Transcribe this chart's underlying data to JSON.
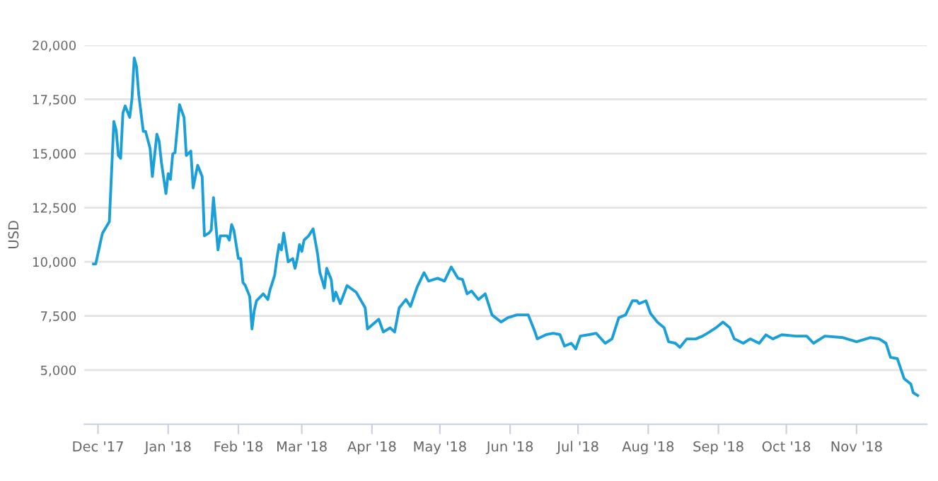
{
  "chart_data": {
    "type": "line",
    "ylabel": "USD",
    "grid": "y",
    "line_style": "solid",
    "marker": "none",
    "xlim": [
      "2017-11-25",
      "2018-12-02"
    ],
    "ylim": [
      2500,
      20000
    ],
    "yticks": [
      {
        "value": 5000,
        "label": "5,000"
      },
      {
        "value": 7500,
        "label": "7,500"
      },
      {
        "value": 10000,
        "label": "10,000"
      },
      {
        "value": 12500,
        "label": "12,500"
      },
      {
        "value": 15000,
        "label": "15,000"
      },
      {
        "value": 17500,
        "label": "17,500"
      },
      {
        "value": 20000,
        "label": "20,000"
      }
    ],
    "xticks": [
      {
        "value": "2017-12-01",
        "label": "Dec '17"
      },
      {
        "value": "2018-01-01",
        "label": "Jan '18"
      },
      {
        "value": "2018-02-01",
        "label": "Feb '18"
      },
      {
        "value": "2018-03-01",
        "label": "Mar '18"
      },
      {
        "value": "2018-04-01",
        "label": "Apr '18"
      },
      {
        "value": "2018-05-01",
        "label": "May '18"
      },
      {
        "value": "2018-06-01",
        "label": "Jun '18"
      },
      {
        "value": "2018-07-01",
        "label": "Jul '18"
      },
      {
        "value": "2018-08-01",
        "label": "Aug '18"
      },
      {
        "value": "2018-09-01",
        "label": "Sep '18"
      },
      {
        "value": "2018-10-01",
        "label": "Oct '18"
      },
      {
        "value": "2018-11-01",
        "label": "Nov '18"
      }
    ],
    "series": [
      {
        "color": "#1a9fd8",
        "x": [
          "2017-11-29",
          "2017-11-30",
          "2017-12-02",
          "2017-12-03",
          "2017-12-06",
          "2017-12-08",
          "2017-12-09",
          "2017-12-10",
          "2017-12-11",
          "2017-12-12",
          "2017-12-13",
          "2017-12-15",
          "2017-12-16",
          "2017-12-17",
          "2017-12-18",
          "2017-12-19",
          "2017-12-21",
          "2017-12-22",
          "2017-12-24",
          "2017-12-25",
          "2017-12-27",
          "2017-12-28",
          "2017-12-29",
          "2017-12-31",
          "2018-01-01",
          "2018-01-02",
          "2018-01-03",
          "2018-01-04",
          "2018-01-06",
          "2018-01-08",
          "2018-01-09",
          "2018-01-11",
          "2018-01-12",
          "2018-01-14",
          "2018-01-16",
          "2018-01-17",
          "2018-01-19",
          "2018-01-20",
          "2018-01-21",
          "2018-01-23",
          "2018-01-24",
          "2018-01-27",
          "2018-01-28",
          "2018-01-29",
          "2018-01-30",
          "2018-02-01",
          "2018-02-02",
          "2018-02-03",
          "2018-02-04",
          "2018-02-06",
          "2018-02-07",
          "2018-02-08",
          "2018-02-09",
          "2018-02-12",
          "2018-02-14",
          "2018-02-15",
          "2018-02-17",
          "2018-02-18",
          "2018-02-19",
          "2018-02-20",
          "2018-02-21",
          "2018-02-23",
          "2018-02-25",
          "2018-02-26",
          "2018-02-27",
          "2018-02-28",
          "2018-03-01",
          "2018-03-02",
          "2018-03-04",
          "2018-03-06",
          "2018-03-08",
          "2018-03-09",
          "2018-03-11",
          "2018-03-12",
          "2018-03-14",
          "2018-03-15",
          "2018-03-16",
          "2018-03-18",
          "2018-03-21",
          "2018-03-25",
          "2018-03-29",
          "2018-03-30",
          "2018-04-04",
          "2018-04-06",
          "2018-04-09",
          "2018-04-11",
          "2018-04-13",
          "2018-04-16",
          "2018-04-18",
          "2018-04-21",
          "2018-04-24",
          "2018-04-26",
          "2018-04-30",
          "2018-05-03",
          "2018-05-06",
          "2018-05-09",
          "2018-05-11",
          "2018-05-13",
          "2018-05-15",
          "2018-05-18",
          "2018-05-21",
          "2018-05-24",
          "2018-05-28",
          "2018-05-31",
          "2018-06-04",
          "2018-06-09",
          "2018-06-12",
          "2018-06-13",
          "2018-06-17",
          "2018-06-20",
          "2018-06-23",
          "2018-06-25",
          "2018-06-28",
          "2018-06-30",
          "2018-07-02",
          "2018-07-06",
          "2018-07-09",
          "2018-07-13",
          "2018-07-16",
          "2018-07-19",
          "2018-07-22",
          "2018-07-25",
          "2018-07-27",
          "2018-07-28",
          "2018-07-31",
          "2018-08-02",
          "2018-08-05",
          "2018-08-08",
          "2018-08-10",
          "2018-08-13",
          "2018-08-15",
          "2018-08-18",
          "2018-08-22",
          "2018-08-25",
          "2018-08-28",
          "2018-08-31",
          "2018-09-03",
          "2018-09-06",
          "2018-09-08",
          "2018-09-12",
          "2018-09-15",
          "2018-09-19",
          "2018-09-22",
          "2018-09-25",
          "2018-09-29",
          "2018-10-05",
          "2018-10-10",
          "2018-10-13",
          "2018-10-18",
          "2018-10-26",
          "2018-11-01",
          "2018-11-07",
          "2018-11-11",
          "2018-11-14",
          "2018-11-16",
          "2018-11-19",
          "2018-11-22",
          "2018-11-25",
          "2018-11-26",
          "2018-11-28"
        ],
        "values": [
          9900,
          9900,
          10870,
          11330,
          11850,
          16480,
          16090,
          14910,
          14780,
          16870,
          17200,
          16670,
          17520,
          19410,
          19020,
          17720,
          16020,
          16020,
          15240,
          13940,
          15890,
          15570,
          14590,
          13150,
          14070,
          13810,
          14980,
          15040,
          17260,
          16670,
          14910,
          15110,
          13410,
          14460,
          13940,
          11200,
          11330,
          11460,
          12960,
          10550,
          11200,
          11200,
          11000,
          11720,
          11460,
          10150,
          10150,
          9050,
          8920,
          8400,
          6900,
          7750,
          8200,
          8520,
          8260,
          8720,
          9370,
          10150,
          10800,
          10550,
          11330,
          10000,
          10150,
          9700,
          10150,
          10800,
          10480,
          11000,
          11200,
          11520,
          10350,
          9500,
          8790,
          9700,
          9180,
          8200,
          8600,
          8070,
          8900,
          8600,
          7870,
          6900,
          7350,
          6760,
          6950,
          6760,
          7870,
          8260,
          7940,
          8850,
          9500,
          9110,
          9240,
          9110,
          9760,
          9240,
          9180,
          8520,
          8650,
          8260,
          8520,
          7550,
          7220,
          7420,
          7550,
          7550,
          6760,
          6440,
          6640,
          6700,
          6640,
          6110,
          6240,
          5980,
          6570,
          6640,
          6700,
          6240,
          6440,
          7420,
          7550,
          8200,
          8200,
          8070,
          8200,
          7620,
          7220,
          6960,
          6310,
          6240,
          6050,
          6440,
          6440,
          6570,
          6760,
          6960,
          7220,
          6960,
          6440,
          6240,
          6440,
          6240,
          6630,
          6440,
          6630,
          6570,
          6570,
          6240,
          6570,
          6500,
          6310,
          6500,
          6440,
          6240,
          5590,
          5530,
          4610,
          4350,
          3960,
          3830
        ]
      }
    ]
  }
}
